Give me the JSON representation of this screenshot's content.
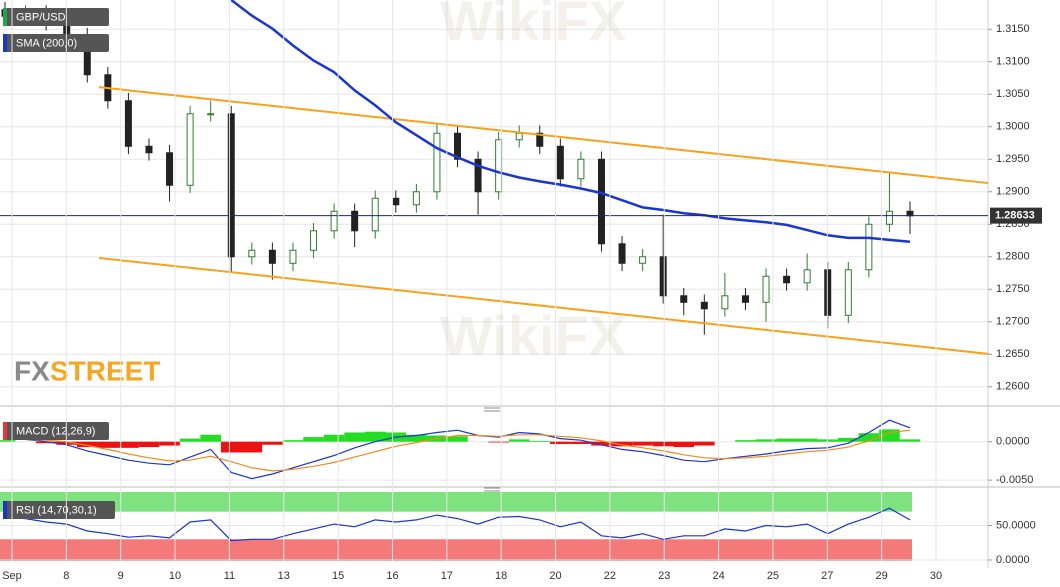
{
  "logo": [
    "FX",
    "STREET"
  ],
  "watermark": "WikiFX",
  "chart_data": [
    {
      "type": "candlestick",
      "title": "GBP/USD",
      "color_up": "#2f7d32",
      "color_down": "#222222",
      "open": [
        1.318,
        1.317,
        1.3175,
        1.316,
        1.314,
        1.308,
        1.304,
        1.297,
        1.296,
        1.291,
        1.302,
        1.302,
        1.28,
        1.281,
        1.279,
        1.281,
        1.284,
        1.287,
        1.284,
        1.289,
        1.288,
        1.29,
        1.299,
        1.295,
        1.29,
        1.298,
        1.299,
        1.297,
        1.292,
        1.295,
        1.282,
        1.279,
        1.28,
        1.274,
        1.273,
        1.272,
        1.274,
        1.273,
        1.277,
        1.276,
        1.278,
        1.271,
        1.278,
        1.285,
        1.287
      ],
      "high": [
        1.3192,
        1.3187,
        1.3187,
        1.3172,
        1.3152,
        1.3092,
        1.3052,
        1.2982,
        1.2972,
        1.3032,
        1.304,
        1.3032,
        1.2822,
        1.2822,
        1.2822,
        1.2852,
        1.2882,
        1.2882,
        1.2902,
        1.2902,
        1.2912,
        1.3005,
        1.3002,
        1.2962,
        1.2992,
        1.3002,
        1.3002,
        1.2982,
        1.2962,
        1.2962,
        1.2832,
        1.2812,
        1.2865,
        1.2752,
        1.2742,
        1.2775,
        1.2752,
        1.2782,
        1.2782,
        1.2805,
        1.2792,
        1.2792,
        1.2862,
        1.293,
        1.2885
      ],
      "low": [
        1.3158,
        1.3158,
        1.3148,
        1.3128,
        1.3068,
        1.3028,
        1.2958,
        1.2948,
        1.2885,
        1.2898,
        1.3008,
        1.2775,
        1.2788,
        1.2765,
        1.2778,
        1.2798,
        1.2828,
        1.2815,
        1.2828,
        1.2868,
        1.2868,
        1.2888,
        1.2938,
        1.2865,
        1.2888,
        1.2968,
        1.2958,
        1.2908,
        1.2908,
        1.2808,
        1.2778,
        1.2778,
        1.2728,
        1.271,
        1.268,
        1.2708,
        1.2718,
        1.27,
        1.2748,
        1.2748,
        1.269,
        1.2698,
        1.2768,
        1.2838,
        1.2835
      ],
      "close": [
        1.317,
        1.3175,
        1.316,
        1.314,
        1.308,
        1.304,
        1.297,
        1.296,
        1.291,
        1.302,
        1.302,
        1.28,
        1.281,
        1.279,
        1.281,
        1.284,
        1.287,
        1.284,
        1.289,
        1.288,
        1.29,
        1.299,
        1.295,
        1.29,
        1.298,
        1.299,
        1.297,
        1.292,
        1.295,
        1.282,
        1.279,
        1.28,
        1.274,
        1.273,
        1.272,
        1.274,
        1.273,
        1.277,
        1.276,
        1.278,
        1.271,
        1.278,
        1.285,
        1.287,
        1.2863
      ],
      "sma": {
        "name": "SMA (200,0)",
        "color": "#1a35d0",
        "values": [
          null,
          null,
          null,
          null,
          null,
          null,
          null,
          null,
          null,
          null,
          null,
          1.3195,
          1.3171,
          1.3151,
          1.3125,
          1.3102,
          1.3084,
          1.3056,
          1.3033,
          1.3007,
          1.2987,
          1.2967,
          1.2953,
          1.294,
          1.293,
          1.2922,
          1.2916,
          1.2911,
          1.2905,
          1.2898,
          1.2887,
          1.2876,
          1.2872,
          1.2867,
          1.2864,
          1.2859,
          1.2856,
          1.2853,
          1.2849,
          1.2841,
          1.2833,
          1.2829,
          1.2829,
          1.2826,
          1.2823
        ]
      },
      "trendlines": [
        {
          "color": "#f7a21b",
          "values": [
            1.30609,
            1.29134
          ]
        },
        {
          "color": "#f7a21b",
          "values": [
            1.27982,
            1.26507
          ]
        }
      ],
      "last_price": 1.28633,
      "ylim": [
        1.2572,
        1.3195
      ],
      "yticks": [
        {
          "value": 1.26,
          "label": "1.2600"
        },
        {
          "value": 1.265,
          "label": "1.2650"
        },
        {
          "value": 1.27,
          "label": "1.2700"
        },
        {
          "value": 1.275,
          "label": "1.2750"
        },
        {
          "value": 1.28,
          "label": "1.2800"
        },
        {
          "value": 1.285,
          "label": "1.2850"
        },
        {
          "value": 1.29,
          "label": "1.2900"
        },
        {
          "value": 1.295,
          "label": "1.2950"
        },
        {
          "value": 1.3,
          "label": "1.3000"
        },
        {
          "value": 1.305,
          "label": "1.3050"
        },
        {
          "value": 1.31,
          "label": "1.3100"
        },
        {
          "value": 1.315,
          "label": "1.3150"
        }
      ]
    },
    {
      "type": "macd",
      "title": "MACD (12,26,9)",
      "histogram": {
        "color_up": "#22dd22",
        "color_down": "#ee1111",
        "values": [
          0.0002,
          0,
          -0.0002,
          -0.0004,
          -0.0007,
          -0.0008,
          -0.0008,
          -0.0007,
          -0.0005,
          0.0004,
          0.0009,
          -0.0014,
          -0.0014,
          -0.0004,
          0.0002,
          0.0006,
          0.0009,
          0.0012,
          0.0013,
          0.0012,
          0.0009,
          0.0008,
          0.0007,
          0,
          -0.0001,
          0.0003,
          0.0001,
          -0.0003,
          -0.0003,
          -0.0005,
          -0.0006,
          -0.0005,
          -0.0006,
          -0.0007,
          -0.0005,
          0,
          0.0002,
          0.0003,
          0.0004,
          0.0004,
          0.0003,
          0.0005,
          0.0011,
          0.0016,
          0.0003
        ]
      },
      "series": [
        {
          "color": "#1a35d0",
          "values": [
            0.0005,
            0.0003,
            0,
            -0.0004,
            -0.0012,
            -0.0018,
            -0.0024,
            -0.0028,
            -0.003,
            -0.002,
            -0.001,
            -0.004,
            -0.0048,
            -0.0042,
            -0.0034,
            -0.0026,
            -0.0018,
            -0.0008,
            0,
            0.0006,
            0.0008,
            0.0012,
            0.0015,
            0.0008,
            0.0006,
            0.0012,
            0.001,
            0.0004,
            0.0002,
            -0.0004,
            -0.001,
            -0.0013,
            -0.0018,
            -0.0024,
            -0.0026,
            -0.0022,
            -0.0019,
            -0.0016,
            -0.0012,
            -0.0009,
            -0.0008,
            -0.0002,
            0.0012,
            0.0028,
            0.0018
          ]
        },
        {
          "color": "#f08c1a",
          "values": [
            0.0003,
            0.0003,
            0.0002,
            0,
            -0.0005,
            -0.001,
            -0.0016,
            -0.0021,
            -0.0025,
            -0.0024,
            -0.0019,
            -0.0026,
            -0.0034,
            -0.0038,
            -0.0036,
            -0.0032,
            -0.0027,
            -0.002,
            -0.0013,
            -0.0006,
            -0.0001,
            0.0004,
            0.0008,
            0.0008,
            0.0007,
            0.0009,
            0.0009,
            0.0007,
            0.0005,
            0.0001,
            -0.0004,
            -0.0008,
            -0.0012,
            -0.0017,
            -0.0021,
            -0.0022,
            -0.0021,
            -0.0019,
            -0.0016,
            -0.0013,
            -0.0011,
            -0.0007,
            0.0001,
            0.0012,
            0.0015
          ]
        }
      ],
      "ylim": [
        -0.0055,
        0.0036
      ],
      "yticks": [
        {
          "value": -0.005,
          "label": "-0.0050"
        },
        {
          "value": 0,
          "label": "0.0000"
        }
      ]
    },
    {
      "type": "rsi",
      "title": "RSI (14,70,30,1)",
      "color": "#1a35d0",
      "upper_level": 70,
      "lower_level": 30,
      "upper_color": "#7ee27e",
      "lower_color": "#f47a7a",
      "values": [
        62,
        60,
        55,
        52,
        42,
        38,
        33,
        35,
        32,
        55,
        58,
        28,
        30,
        30,
        38,
        45,
        52,
        48,
        58,
        55,
        58,
        65,
        60,
        52,
        62,
        63,
        58,
        48,
        55,
        35,
        32,
        38,
        30,
        35,
        35,
        45,
        42,
        50,
        48,
        52,
        38,
        52,
        62,
        75,
        58
      ],
      "ylim": [
        -1.5,
        98.5
      ],
      "yticks": [
        {
          "value": 0,
          "label": "0.0000"
        },
        {
          "value": 50,
          "label": "50.0000"
        }
      ],
      "xticks": [
        "Sep",
        "8",
        "9",
        "10",
        "11",
        "13",
        "15",
        "16",
        "17",
        "18",
        "20",
        "22",
        "23",
        "24",
        "25",
        "27",
        "29",
        "30"
      ]
    }
  ]
}
